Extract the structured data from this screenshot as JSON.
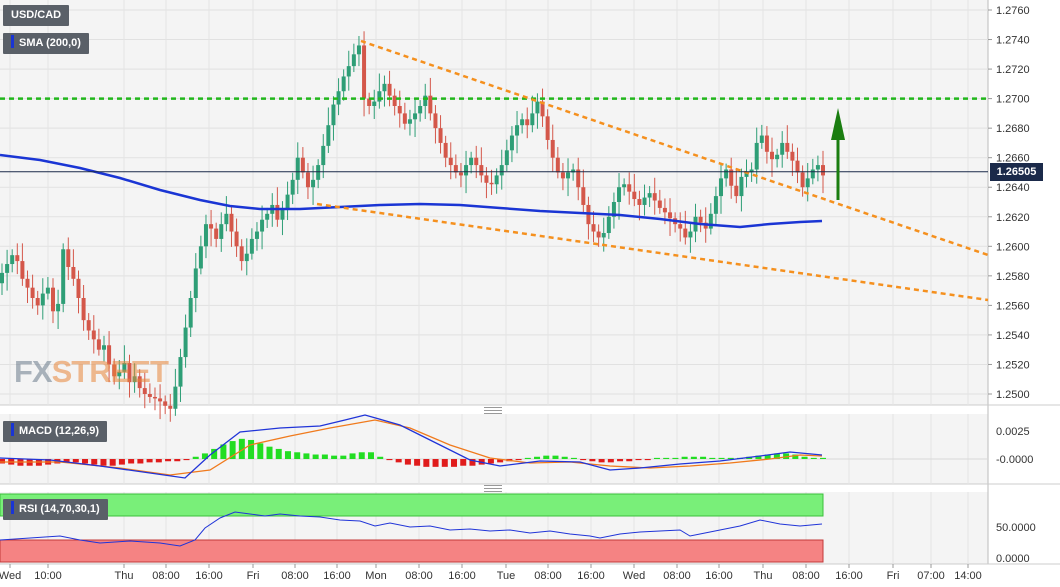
{
  "chart_data": {
    "type": "candlestick",
    "instrument": "USD/CAD",
    "price_axis": {
      "ticks": [
        "1.2760",
        "1.2740",
        "1.2720",
        "1.2700",
        "1.2680",
        "1.2660",
        "1.2640",
        "1.2620",
        "1.2600",
        "1.2580",
        "1.2560",
        "1.2540",
        "1.2520",
        "1.2500"
      ],
      "range": [
        1.2495,
        1.2765
      ]
    },
    "current_price": "1.26505",
    "x_labels": [
      "Wed",
      "10:00",
      "Thu",
      "08:00",
      "16:00",
      "Fri",
      "08:00",
      "16:00",
      "Mon",
      "08:00",
      "16:00",
      "Tue",
      "08:00",
      "16:00",
      "Wed",
      "08:00",
      "16:00",
      "Thu",
      "08:00",
      "16:00",
      "Fri",
      "07:00",
      "14:00"
    ],
    "indicators": {
      "sma": {
        "label": "SMA (200,0)",
        "color": "#1a35d4"
      },
      "macd": {
        "label": "MACD (12,26,9)",
        "ticks": [
          "0.0025",
          "-0.0000"
        ],
        "range": [
          -0.0012,
          0.0036
        ]
      },
      "rsi": {
        "label": "RSI (14,70,30,1)",
        "ticks": [
          "50.0000",
          "0.0000"
        ],
        "range": [
          0,
          100
        ]
      }
    },
    "levels": {
      "horizontal_resistance": 1.27
    },
    "colors": {
      "up": "#2e9e76",
      "down": "#d4574a",
      "trendline": "#f5901e",
      "resistance": "#22b71c",
      "arrow": "#1a7d10",
      "sma": "#1a35d4",
      "price_line": "#1b2a4a",
      "macd_line": "#2034d8",
      "signal_line": "#f07a1c"
    }
  },
  "watermark": {
    "part1": "FX",
    "part2": "STREET"
  }
}
